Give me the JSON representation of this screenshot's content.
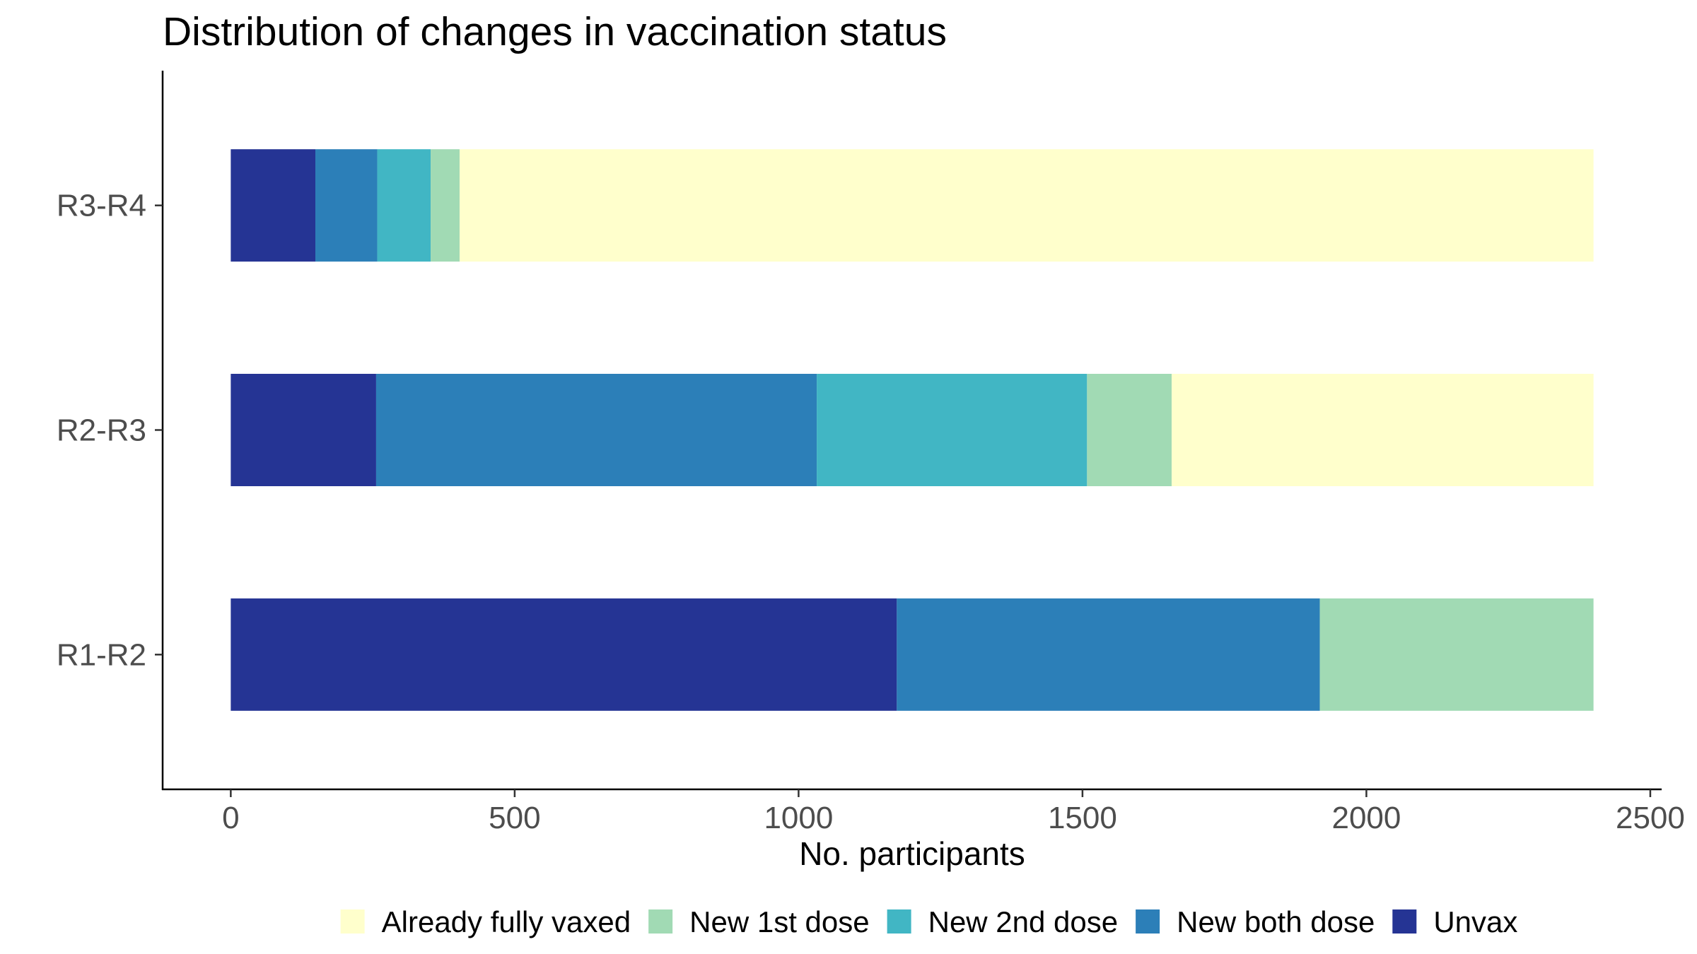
{
  "chart_data": {
    "type": "bar",
    "orientation": "horizontal",
    "stacked": true,
    "title": "Distribution of changes in vaccination status",
    "xlabel": "No. participants",
    "ylabel": "",
    "categories": [
      "R3-R4",
      "R2-R3",
      "R1-R2"
    ],
    "xlim": [
      -120,
      2520
    ],
    "xticks": [
      0,
      500,
      1000,
      1500,
      2000,
      2500
    ],
    "grid": false,
    "legend": {
      "position": "bottom"
    },
    "series": [
      {
        "name": "Unvax",
        "color": "#253494",
        "values": [
          149,
          256,
          1173
        ]
      },
      {
        "name": "New both dose",
        "color": "#2C7FB8",
        "values": [
          109,
          776,
          745
        ]
      },
      {
        "name": "New 2nd dose",
        "color": "#41B6C4",
        "values": [
          94,
          476,
          0
        ]
      },
      {
        "name": "New 1st dose",
        "color": "#A1DAB4",
        "values": [
          51,
          149,
          482
        ]
      },
      {
        "name": "Already fully vaxed",
        "color": "#FFFFCC",
        "values": [
          1997,
          743,
          0
        ]
      }
    ]
  }
}
